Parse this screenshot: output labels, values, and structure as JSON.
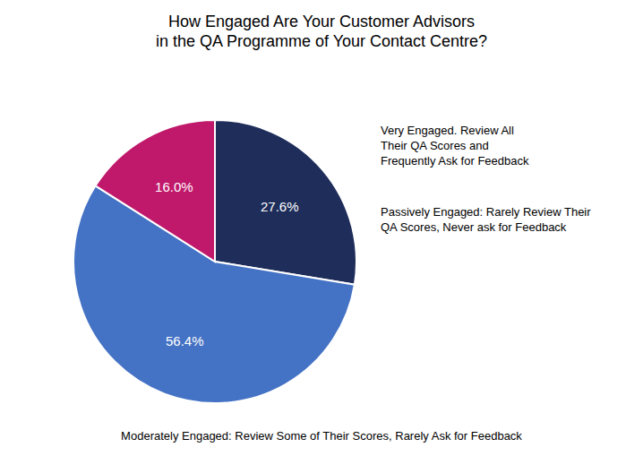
{
  "chart_data": {
    "type": "pie",
    "title": "How Engaged Are Your Customer Advisors\nin the QA Programme of Your Contact Centre?",
    "values": [
      27.6,
      56.4,
      16.0
    ],
    "value_labels": [
      "27.6%",
      "56.4%",
      "16.0%"
    ],
    "colors": [
      "#1e2d5a",
      "#4472c4",
      "#c0186a"
    ],
    "data_labels": true,
    "annotations": [
      "Very Engaged. Review All\nTheir QA Scores and\nFrequently Ask for Feedback",
      "Moderately Engaged: Review Some of Their Scores, Rarely Ask for Feedback",
      "Passively Engaged: Rarely Review Their\nQA Scores, Never ask for Feedback"
    ]
  }
}
